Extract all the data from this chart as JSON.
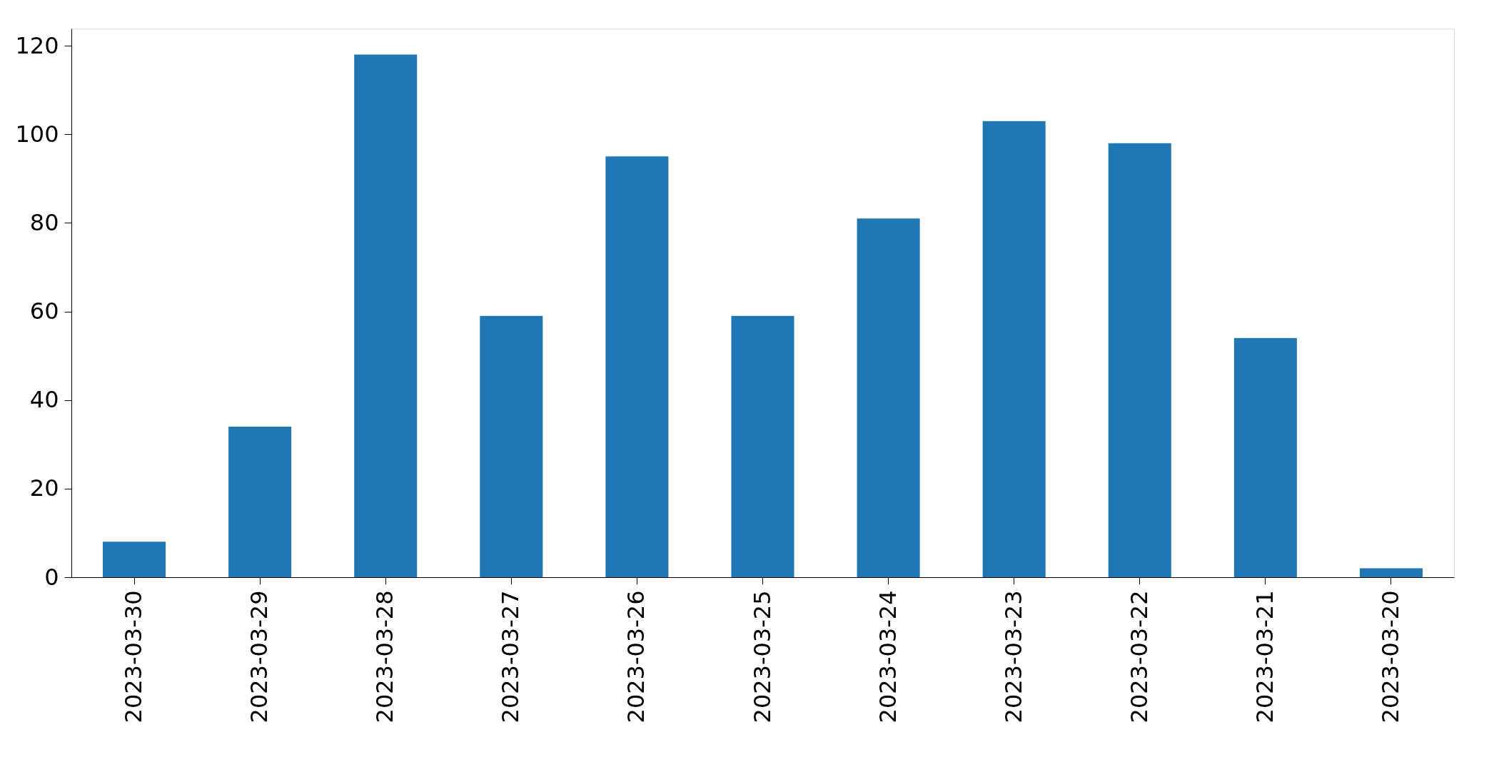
{
  "chart_data": {
    "type": "bar",
    "categories": [
      "2023-03-30",
      "2023-03-29",
      "2023-03-28",
      "2023-03-27",
      "2023-03-26",
      "2023-03-25",
      "2023-03-24",
      "2023-03-23",
      "2023-03-22",
      "2023-03-21",
      "2023-03-20"
    ],
    "values": [
      8,
      34,
      118,
      59,
      95,
      59,
      81,
      103,
      98,
      54,
      2
    ],
    "color": "#1f77b4",
    "ylim": [
      0,
      123.9
    ],
    "yticks": [
      0,
      20,
      40,
      60,
      80,
      100,
      120
    ],
    "grid": false
  }
}
